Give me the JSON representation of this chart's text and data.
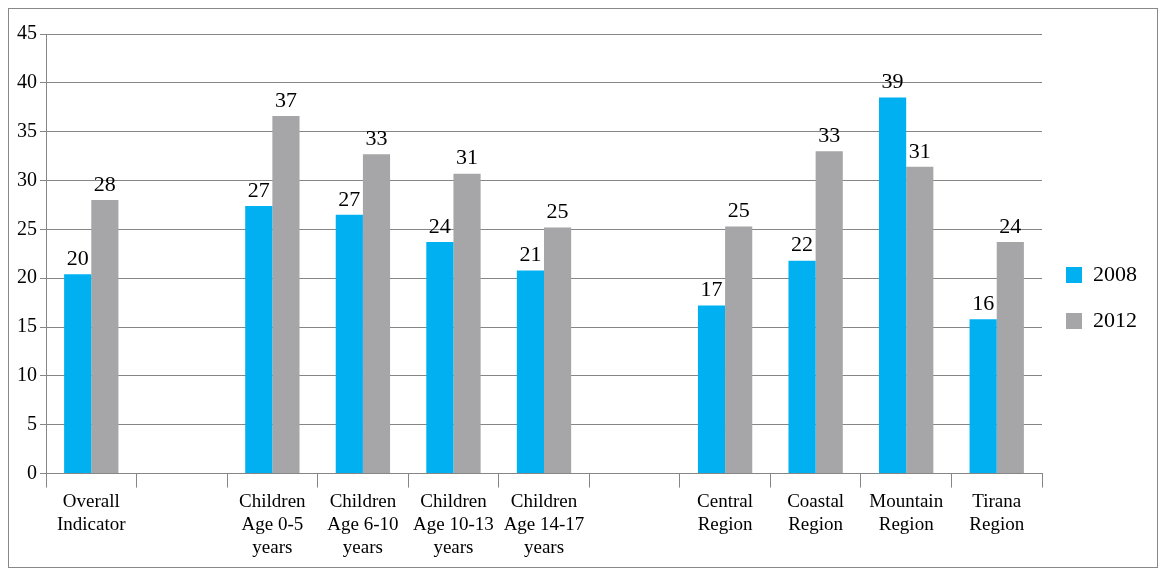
{
  "chart_data": {
    "type": "bar",
    "categories": [
      "Overall Indicator",
      null,
      "Children Age 0-5 years",
      "Children Age 6-10 years",
      "Children Age 10-13 years",
      "Children Age 14-17 years",
      null,
      "Central Region",
      "Coastal Region",
      "Mountain Region",
      "Tirana Region"
    ],
    "series": [
      {
        "name": "2008",
        "color": "#00b0f0",
        "values": [
          20.4,
          null,
          27.4,
          26.5,
          23.7,
          20.8,
          null,
          17.2,
          21.8,
          38.5,
          15.8
        ],
        "value_labels": [
          "20",
          null,
          "27",
          "27",
          "24",
          "21",
          null,
          "17",
          "22",
          "39",
          "16"
        ]
      },
      {
        "name": "2012",
        "color": "#a6a6a8",
        "values": [
          28,
          null,
          36.6,
          32.7,
          30.7,
          25.2,
          null,
          25.3,
          33,
          31.4,
          23.7
        ],
        "value_labels": [
          "28",
          null,
          "37",
          "33",
          "31",
          "25",
          null,
          "25",
          "33",
          "31",
          "24"
        ]
      }
    ],
    "ylim": [
      0,
      45
    ],
    "yticks": [
      0,
      5,
      10,
      15,
      20,
      25,
      30,
      35,
      40,
      45
    ],
    "grid": "y",
    "legend": "right"
  }
}
